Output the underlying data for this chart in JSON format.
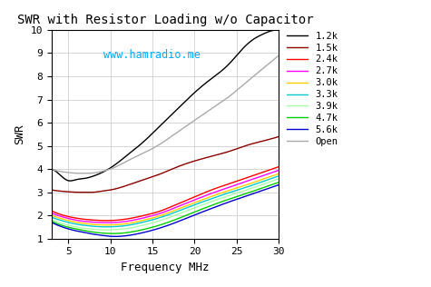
{
  "title": "SWR with Resistor Loading w/o Capacitor",
  "xlabel": "Frequency MHz",
  "ylabel": "SWR",
  "annotation": "www.hamradio.me",
  "annotation_color": "#00AAFF",
  "xlim": [
    3,
    30
  ],
  "ylim": [
    1,
    10
  ],
  "yticks": [
    1,
    2,
    3,
    4,
    5,
    6,
    7,
    8,
    9,
    10
  ],
  "xticks": [
    5,
    10,
    15,
    20,
    25,
    30
  ],
  "background_color": "#FFFFFF",
  "grid_color": "#CCCCCC",
  "series": [
    {
      "label": "1.2k",
      "color": "#000000",
      "pts_f": [
        3,
        4,
        5,
        6,
        7,
        8,
        9,
        10,
        12,
        14,
        16,
        18,
        20,
        22,
        24,
        26,
        27,
        28,
        29,
        30
      ],
      "pts_s": [
        4.0,
        3.75,
        3.5,
        3.55,
        3.6,
        3.7,
        3.85,
        4.05,
        4.6,
        5.2,
        5.9,
        6.6,
        7.3,
        7.9,
        8.5,
        9.3,
        9.6,
        9.8,
        9.95,
        10.0
      ]
    },
    {
      "label": "1.5k",
      "color": "#8B0000",
      "pts_f": [
        3,
        4,
        5,
        6,
        7,
        8,
        9,
        10,
        12,
        14,
        16,
        18,
        20,
        22,
        24,
        26,
        28,
        30
      ],
      "pts_s": [
        3.1,
        3.05,
        3.02,
        3.0,
        3.0,
        3.0,
        3.05,
        3.1,
        3.3,
        3.55,
        3.8,
        4.1,
        4.35,
        4.55,
        4.75,
        5.0,
        5.2,
        5.4
      ]
    },
    {
      "label": "2.4k",
      "color": "#FF0000",
      "pts_f": [
        3,
        4,
        5,
        6,
        7,
        8,
        9,
        10,
        12,
        14,
        16,
        18,
        20,
        22,
        24,
        26,
        28,
        30
      ],
      "pts_s": [
        2.2,
        2.05,
        1.95,
        1.88,
        1.83,
        1.8,
        1.78,
        1.78,
        1.85,
        2.0,
        2.2,
        2.5,
        2.8,
        3.1,
        3.35,
        3.6,
        3.85,
        4.1
      ]
    },
    {
      "label": "2.7k",
      "color": "#FF00FF",
      "pts_f": [
        3,
        4,
        5,
        6,
        7,
        8,
        9,
        10,
        12,
        14,
        16,
        18,
        20,
        22,
        24,
        26,
        28,
        30
      ],
      "pts_s": [
        2.1,
        1.97,
        1.87,
        1.79,
        1.74,
        1.71,
        1.69,
        1.69,
        1.75,
        1.9,
        2.1,
        2.38,
        2.67,
        2.95,
        3.2,
        3.45,
        3.7,
        3.95
      ]
    },
    {
      "label": "3.0k",
      "color": "#FFCC00",
      "pts_f": [
        3,
        4,
        5,
        6,
        7,
        8,
        9,
        10,
        12,
        14,
        16,
        18,
        20,
        22,
        24,
        26,
        28,
        30
      ],
      "pts_s": [
        2.0,
        1.88,
        1.78,
        1.7,
        1.65,
        1.61,
        1.59,
        1.59,
        1.65,
        1.8,
        2.0,
        2.27,
        2.55,
        2.82,
        3.07,
        3.3,
        3.55,
        3.8
      ]
    },
    {
      "label": "3.3k",
      "color": "#00CCCC",
      "pts_f": [
        3,
        4,
        5,
        6,
        7,
        8,
        9,
        10,
        12,
        14,
        16,
        18,
        20,
        22,
        24,
        26,
        28,
        30
      ],
      "pts_s": [
        1.92,
        1.8,
        1.7,
        1.62,
        1.57,
        1.53,
        1.51,
        1.51,
        1.57,
        1.72,
        1.92,
        2.18,
        2.46,
        2.72,
        2.97,
        3.2,
        3.45,
        3.7
      ]
    },
    {
      "label": "3.9k",
      "color": "#AAFFAA",
      "pts_f": [
        3,
        4,
        5,
        6,
        7,
        8,
        9,
        10,
        12,
        14,
        16,
        18,
        20,
        22,
        24,
        26,
        28,
        30
      ],
      "pts_s": [
        1.82,
        1.68,
        1.58,
        1.5,
        1.44,
        1.4,
        1.38,
        1.38,
        1.44,
        1.59,
        1.79,
        2.05,
        2.33,
        2.6,
        2.85,
        3.08,
        3.33,
        3.58
      ]
    },
    {
      "label": "4.7k",
      "color": "#00CC00",
      "pts_f": [
        3,
        4,
        5,
        6,
        7,
        8,
        9,
        10,
        12,
        14,
        16,
        18,
        20,
        22,
        24,
        26,
        28,
        30
      ],
      "pts_s": [
        1.75,
        1.6,
        1.49,
        1.41,
        1.34,
        1.28,
        1.24,
        1.22,
        1.26,
        1.4,
        1.6,
        1.86,
        2.15,
        2.43,
        2.69,
        2.93,
        3.18,
        3.43
      ]
    },
    {
      "label": "5.6k",
      "color": "#0000CC",
      "pts_f": [
        3,
        4,
        5,
        6,
        7,
        8,
        9,
        10,
        12,
        14,
        16,
        18,
        20,
        22,
        24,
        26,
        28,
        30
      ],
      "pts_s": [
        1.7,
        1.54,
        1.42,
        1.33,
        1.26,
        1.19,
        1.14,
        1.1,
        1.13,
        1.27,
        1.47,
        1.73,
        2.02,
        2.3,
        2.57,
        2.82,
        3.07,
        3.32
      ]
    },
    {
      "label": "Open",
      "color": "#AAAAAA",
      "pts_f": [
        3,
        4,
        5,
        6,
        7,
        8,
        9,
        10,
        12,
        14,
        16,
        18,
        20,
        22,
        24,
        26,
        28,
        30
      ],
      "pts_s": [
        4.0,
        3.9,
        3.85,
        3.82,
        3.82,
        3.83,
        3.9,
        4.0,
        4.35,
        4.7,
        5.1,
        5.6,
        6.1,
        6.6,
        7.1,
        7.7,
        8.3,
        8.9
      ]
    }
  ]
}
